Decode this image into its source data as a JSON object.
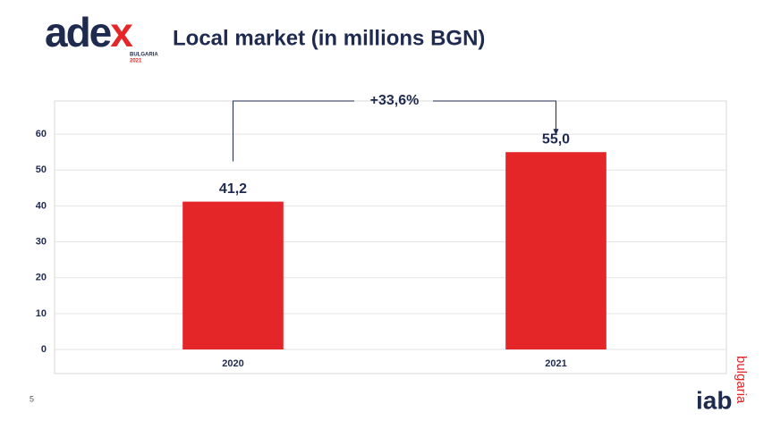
{
  "logo": {
    "brand_main": "ade",
    "brand_accent": "x",
    "country": "BULGARIA",
    "year": "2021"
  },
  "footer": {
    "page_number": "5",
    "iab": "iab",
    "iab_country": "bulgaria"
  },
  "chart_data": {
    "type": "bar",
    "title": "Local market (in millions BGN)",
    "categories": [
      "2020",
      "2021"
    ],
    "values": [
      41.2,
      55.0
    ],
    "value_labels": [
      "41,2",
      "55,0"
    ],
    "color": "#e52629",
    "ylim": [
      0,
      70
    ],
    "yticks": [
      0,
      10,
      20,
      30,
      40,
      50,
      60
    ],
    "grid": true,
    "annotation": "+33,6%"
  }
}
